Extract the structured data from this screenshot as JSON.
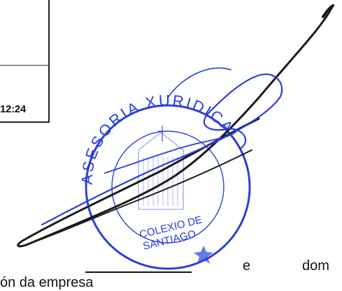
{
  "document": {
    "timestamp": "12:24",
    "inline_word_1": "e",
    "inline_word_2": "dom",
    "bottom_line_fragment": "ón da empresa"
  },
  "stamp": {
    "ink_color": "#2a3fd8",
    "ring_text": "ASESORIA XURIDICA",
    "inner_text_line_1": "COLEXIO DE",
    "inner_text_line_2": "SANTIAGO"
  },
  "signature": {
    "ink_color": "#1a1a1a"
  }
}
